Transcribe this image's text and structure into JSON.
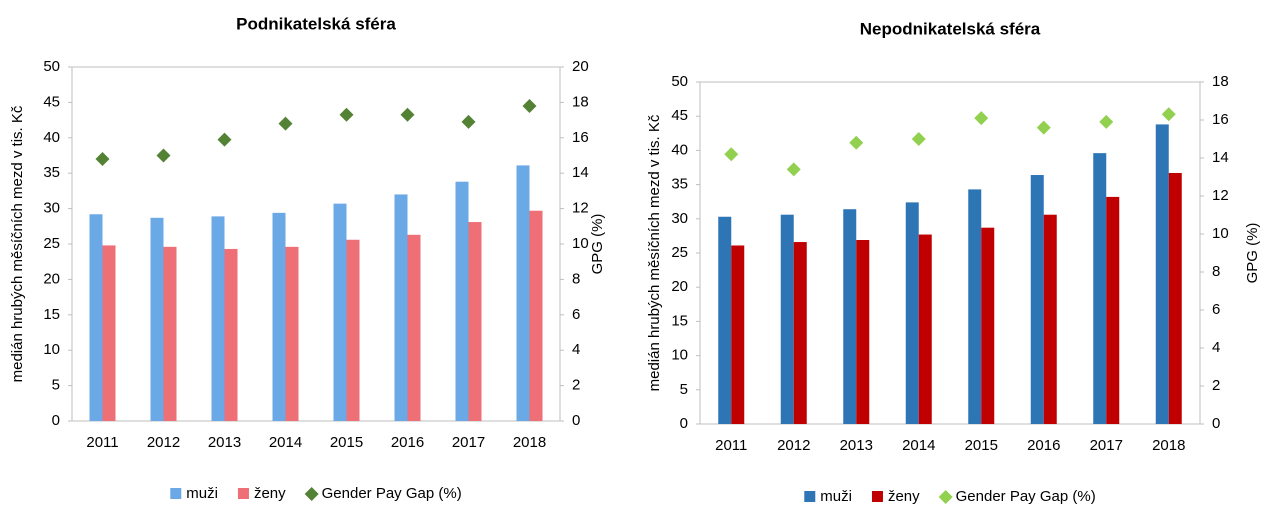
{
  "chart_data": [
    {
      "type": "bar",
      "title": "Podnikatelská sféra",
      "categories": [
        "2011",
        "2012",
        "2013",
        "2014",
        "2015",
        "2016",
        "2017",
        "2018"
      ],
      "series": [
        {
          "name": "muži",
          "color": "#6aa8e6",
          "values": [
            29.2,
            28.7,
            28.9,
            29.4,
            30.7,
            32.0,
            33.8,
            36.1
          ]
        },
        {
          "name": "ženy",
          "color": "#ee6f76",
          "values": [
            24.8,
            24.6,
            24.3,
            24.6,
            25.6,
            26.3,
            28.1,
            29.7
          ]
        },
        {
          "name": "Gender Pay Gap (%)",
          "color": "#548235",
          "type": "scatter",
          "axis": "y2",
          "values": [
            14.8,
            15.0,
            15.9,
            16.8,
            17.3,
            17.3,
            16.9,
            17.8
          ]
        }
      ],
      "ylabel": "medián hrubých měsíčních mezd v tis. Kč",
      "y2label": "GPG (%)",
      "ylim": [
        0,
        50
      ],
      "yticks": [
        0,
        5,
        10,
        15,
        20,
        25,
        30,
        35,
        40,
        45,
        50
      ],
      "y2lim": [
        0,
        20
      ],
      "y2ticks": [
        0,
        2,
        4,
        6,
        8,
        10,
        12,
        14,
        16,
        18,
        20
      ],
      "legend": "bottom"
    },
    {
      "type": "bar",
      "title": "Nepodnikatelská sféra",
      "categories": [
        "2011",
        "2012",
        "2013",
        "2014",
        "2015",
        "2016",
        "2017",
        "2018"
      ],
      "series": [
        {
          "name": "muži",
          "color": "#2e75b6",
          "values": [
            30.3,
            30.6,
            31.4,
            32.4,
            34.3,
            36.4,
            39.6,
            43.8
          ]
        },
        {
          "name": "ženy",
          "color": "#c00000",
          "values": [
            26.1,
            26.6,
            26.9,
            27.7,
            28.7,
            30.6,
            33.2,
            36.7
          ]
        },
        {
          "name": "Gender Pay Gap (%)",
          "color": "#92d050",
          "type": "scatter",
          "axis": "y2",
          "values": [
            14.2,
            13.4,
            14.8,
            15.0,
            16.1,
            15.6,
            15.9,
            16.3
          ]
        }
      ],
      "ylabel": "medián hrubých měsíčních mezd v tis. Kč",
      "y2label": "GPG (%)",
      "ylim": [
        0,
        50
      ],
      "yticks": [
        0,
        5,
        10,
        15,
        20,
        25,
        30,
        35,
        40,
        45,
        50
      ],
      "y2lim": [
        0,
        18
      ],
      "y2ticks": [
        0,
        2,
        4,
        6,
        8,
        10,
        12,
        14,
        16,
        18
      ],
      "legend": "bottom"
    }
  ]
}
